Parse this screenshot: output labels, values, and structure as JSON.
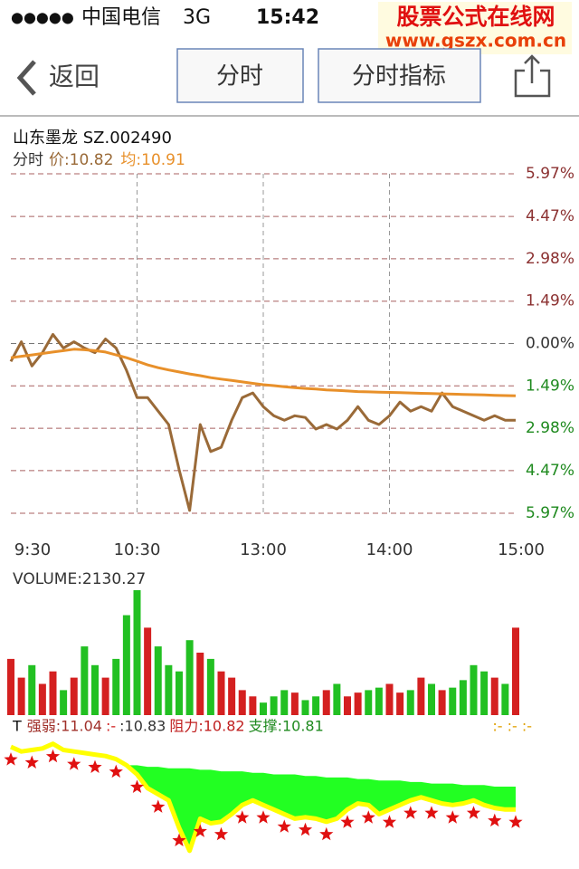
{
  "status_bar": {
    "carrier": "中国电信",
    "network": "3G",
    "time": "15:42"
  },
  "watermark": {
    "name": "股票公式在线网",
    "url": "www.gszx.com.cn"
  },
  "nav": {
    "back": "返回",
    "tabs": [
      "分时",
      "分时指标"
    ]
  },
  "chart_data": [
    {
      "type": "line",
      "title": "山东墨龙 SZ.002490",
      "label": "分时",
      "categories": [
        "9:30",
        null,
        null,
        null,
        null,
        null,
        null,
        null,
        null,
        null,
        null,
        null,
        "10:30",
        null,
        null,
        null,
        null,
        null,
        null,
        null,
        null,
        null,
        null,
        null,
        "13:00",
        null,
        null,
        null,
        null,
        null,
        null,
        null,
        null,
        null,
        null,
        null,
        "14:00",
        null,
        null,
        null,
        null,
        null,
        null,
        null,
        null,
        null,
        null,
        null,
        "15:00"
      ],
      "series": [
        {
          "name": "价:10.82",
          "color": "#9a6a38",
          "values": [
            -0.63,
            0.06,
            -0.79,
            -0.32,
            0.32,
            -0.16,
            0.06,
            -0.16,
            -0.32,
            0.16,
            -0.16,
            -0.95,
            -1.9,
            -1.9,
            -2.38,
            -2.85,
            -4.44,
            -5.87,
            -2.85,
            -3.8,
            -3.65,
            -2.7,
            -1.9,
            -1.74,
            -2.22,
            -2.54,
            -2.7,
            -2.54,
            -2.6,
            -3.01,
            -2.85,
            -3.01,
            -2.7,
            -2.22,
            -2.7,
            -2.85,
            -2.54,
            -2.06,
            -2.38,
            -2.22,
            -2.38,
            -1.74,
            -2.22,
            -2.38,
            -2.54,
            -2.7,
            -2.54,
            -2.7,
            -2.7
          ]
        },
        {
          "name": "均:10.91",
          "color": "#e8902a",
          "values": [
            -0.5,
            -0.45,
            -0.4,
            -0.35,
            -0.3,
            -0.25,
            -0.2,
            -0.22,
            -0.25,
            -0.3,
            -0.4,
            -0.5,
            -0.62,
            -0.75,
            -0.85,
            -0.93,
            -1.0,
            -1.07,
            -1.13,
            -1.2,
            -1.25,
            -1.3,
            -1.35,
            -1.4,
            -1.45,
            -1.48,
            -1.52,
            -1.55,
            -1.58,
            -1.6,
            -1.63,
            -1.65,
            -1.67,
            -1.69,
            -1.7,
            -1.71,
            -1.72,
            -1.73,
            -1.74,
            -1.75,
            -1.76,
            -1.77,
            -1.78,
            -1.79,
            -1.8,
            -1.81,
            -1.82,
            -1.83,
            -1.84
          ]
        }
      ],
      "ylim": [
        -5.97,
        5.97
      ],
      "yticks": [
        {
          "value": 5.97,
          "label": "5.97%"
        },
        {
          "value": 4.47,
          "label": "4.47%"
        },
        {
          "value": 2.98,
          "label": "2.98%"
        },
        {
          "value": 1.49,
          "label": "1.49%"
        },
        {
          "value": 0,
          "label": "0.00%"
        },
        {
          "value": -1.49,
          "label": "1.49%"
        },
        {
          "value": -2.98,
          "label": "2.98%"
        },
        {
          "value": -4.47,
          "label": "4.47%"
        },
        {
          "value": -5.97,
          "label": "5.97%"
        }
      ],
      "grid": true
    },
    {
      "type": "bar",
      "title": "VOLUME:2130.27",
      "up_color": "#d42020",
      "down_color": "#22c022",
      "values": [
        45,
        30,
        40,
        25,
        35,
        20,
        30,
        55,
        40,
        30,
        45,
        80,
        100,
        70,
        55,
        40,
        35,
        60,
        50,
        45,
        35,
        30,
        20,
        15,
        10,
        15,
        20,
        18,
        12,
        15,
        20,
        25,
        15,
        18,
        20,
        22,
        25,
        18,
        20,
        30,
        25,
        20,
        22,
        28,
        40,
        35,
        30,
        25,
        70
      ],
      "ylim": [
        0,
        100
      ]
    },
    {
      "type": "line",
      "labels": [
        "T",
        "强弱:11.04",
        ":-",
        ":10.83",
        "阻力:10.82",
        "支撑:10.81"
      ],
      "right_label": ":- :- :-",
      "ylim": [
        10.3,
        11.1
      ],
      "upper": {
        "color": "#22ff22",
        "values": [
          null,
          null,
          null,
          null,
          null,
          null,
          null,
          null,
          null,
          null,
          null,
          10.92,
          10.92,
          10.91,
          10.91,
          10.9,
          10.9,
          10.9,
          10.89,
          10.89,
          10.88,
          10.88,
          10.88,
          10.87,
          10.87,
          10.86,
          10.86,
          10.86,
          10.85,
          10.85,
          10.84,
          10.84,
          10.84,
          10.83,
          10.83,
          10.82,
          10.82,
          10.82,
          10.81,
          10.81,
          10.8,
          10.8,
          10.8,
          10.79,
          10.79,
          10.79,
          10.78,
          10.78,
          10.78
        ]
      },
      "lower": {
        "color": "#ffff00",
        "values": [
          11.04,
          11.01,
          11.02,
          11.03,
          11.06,
          11.02,
          11.01,
          11.0,
          10.99,
          10.98,
          10.96,
          10.92,
          10.86,
          10.77,
          10.73,
          10.69,
          10.51,
          10.36,
          10.57,
          10.54,
          10.55,
          10.6,
          10.66,
          10.69,
          10.66,
          10.63,
          10.6,
          10.57,
          10.58,
          10.57,
          10.55,
          10.57,
          10.63,
          10.67,
          10.66,
          10.6,
          10.63,
          10.66,
          10.69,
          10.71,
          10.69,
          10.67,
          10.66,
          10.67,
          10.69,
          10.66,
          10.64,
          10.63,
          10.63
        ]
      }
    }
  ]
}
